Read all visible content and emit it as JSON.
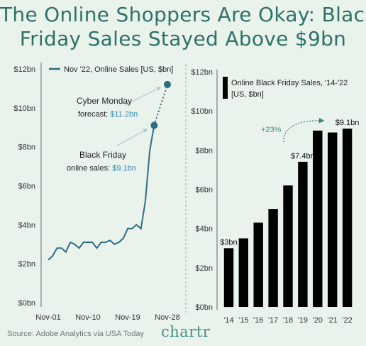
{
  "title": {
    "line1": "The Online Shoppers Are Okay: Black",
    "line2": "Friday Sales Stayed Above $9bn"
  },
  "source": "Source: Adobe Analytics via USA Today",
  "brand": "chartr",
  "colors": {
    "line": "#2d6e84",
    "bars": "#000000",
    "accent": "#3a8a73",
    "title": "#2d7268"
  },
  "chart_data": [
    {
      "type": "line",
      "legend": "Nov '22, Online Sales [US, $bn]",
      "x_ticks": [
        "Nov-01",
        "Nov-10",
        "Nov-19",
        "Nov-28"
      ],
      "y_ticks": [
        "$0bn",
        "$2bn",
        "$4bn",
        "$6bn",
        "$8bn",
        "$10bn",
        "$12bn"
      ],
      "ylim": [
        0,
        12
      ],
      "xlim": [
        1,
        28
      ],
      "x": [
        1,
        2,
        3,
        4,
        5,
        6,
        7,
        8,
        9,
        10,
        11,
        12,
        13,
        14,
        15,
        16,
        17,
        18,
        19,
        20,
        21,
        22,
        23,
        24,
        25
      ],
      "values": [
        2.2,
        2.4,
        2.8,
        2.8,
        2.6,
        3.1,
        3.0,
        2.8,
        3.1,
        3.1,
        3.1,
        2.8,
        3.1,
        3.1,
        3.2,
        3.0,
        3.1,
        3.3,
        3.8,
        3.8,
        4.0,
        3.8,
        5.2,
        7.8,
        9.1
      ],
      "forecast": {
        "x": [
          25,
          28
        ],
        "values": [
          9.1,
          11.2
        ]
      },
      "annotations": {
        "cyber_monday": {
          "line1": "Cyber Monday",
          "line2": "forecast: ",
          "value": "$11.2bn"
        },
        "black_friday": {
          "line1": "Black Friday",
          "line2": "online sales: ",
          "value": "$9.1bn"
        }
      }
    },
    {
      "type": "bar",
      "legend_line1": "Online Black Friday Sales, '14-'22",
      "legend_line2": "[US, $bn]",
      "categories": [
        "'14",
        "'15",
        "'16",
        "'17",
        "'18",
        "'19",
        "'20",
        "'21",
        "'22"
      ],
      "values": [
        3.0,
        3.5,
        4.3,
        5.0,
        6.2,
        7.4,
        9.0,
        8.9,
        9.1
      ],
      "y_ticks": [
        "$0bn",
        "$2bn",
        "$4bn",
        "$6bn",
        "$8bn",
        "$10bn",
        "$12bn"
      ],
      "ylim": [
        0,
        12
      ],
      "data_labels": {
        "'14": "$3bn",
        "'19": "$7.4bn",
        "'22": "$9.1bn"
      },
      "growth_label": "+23%"
    }
  ]
}
